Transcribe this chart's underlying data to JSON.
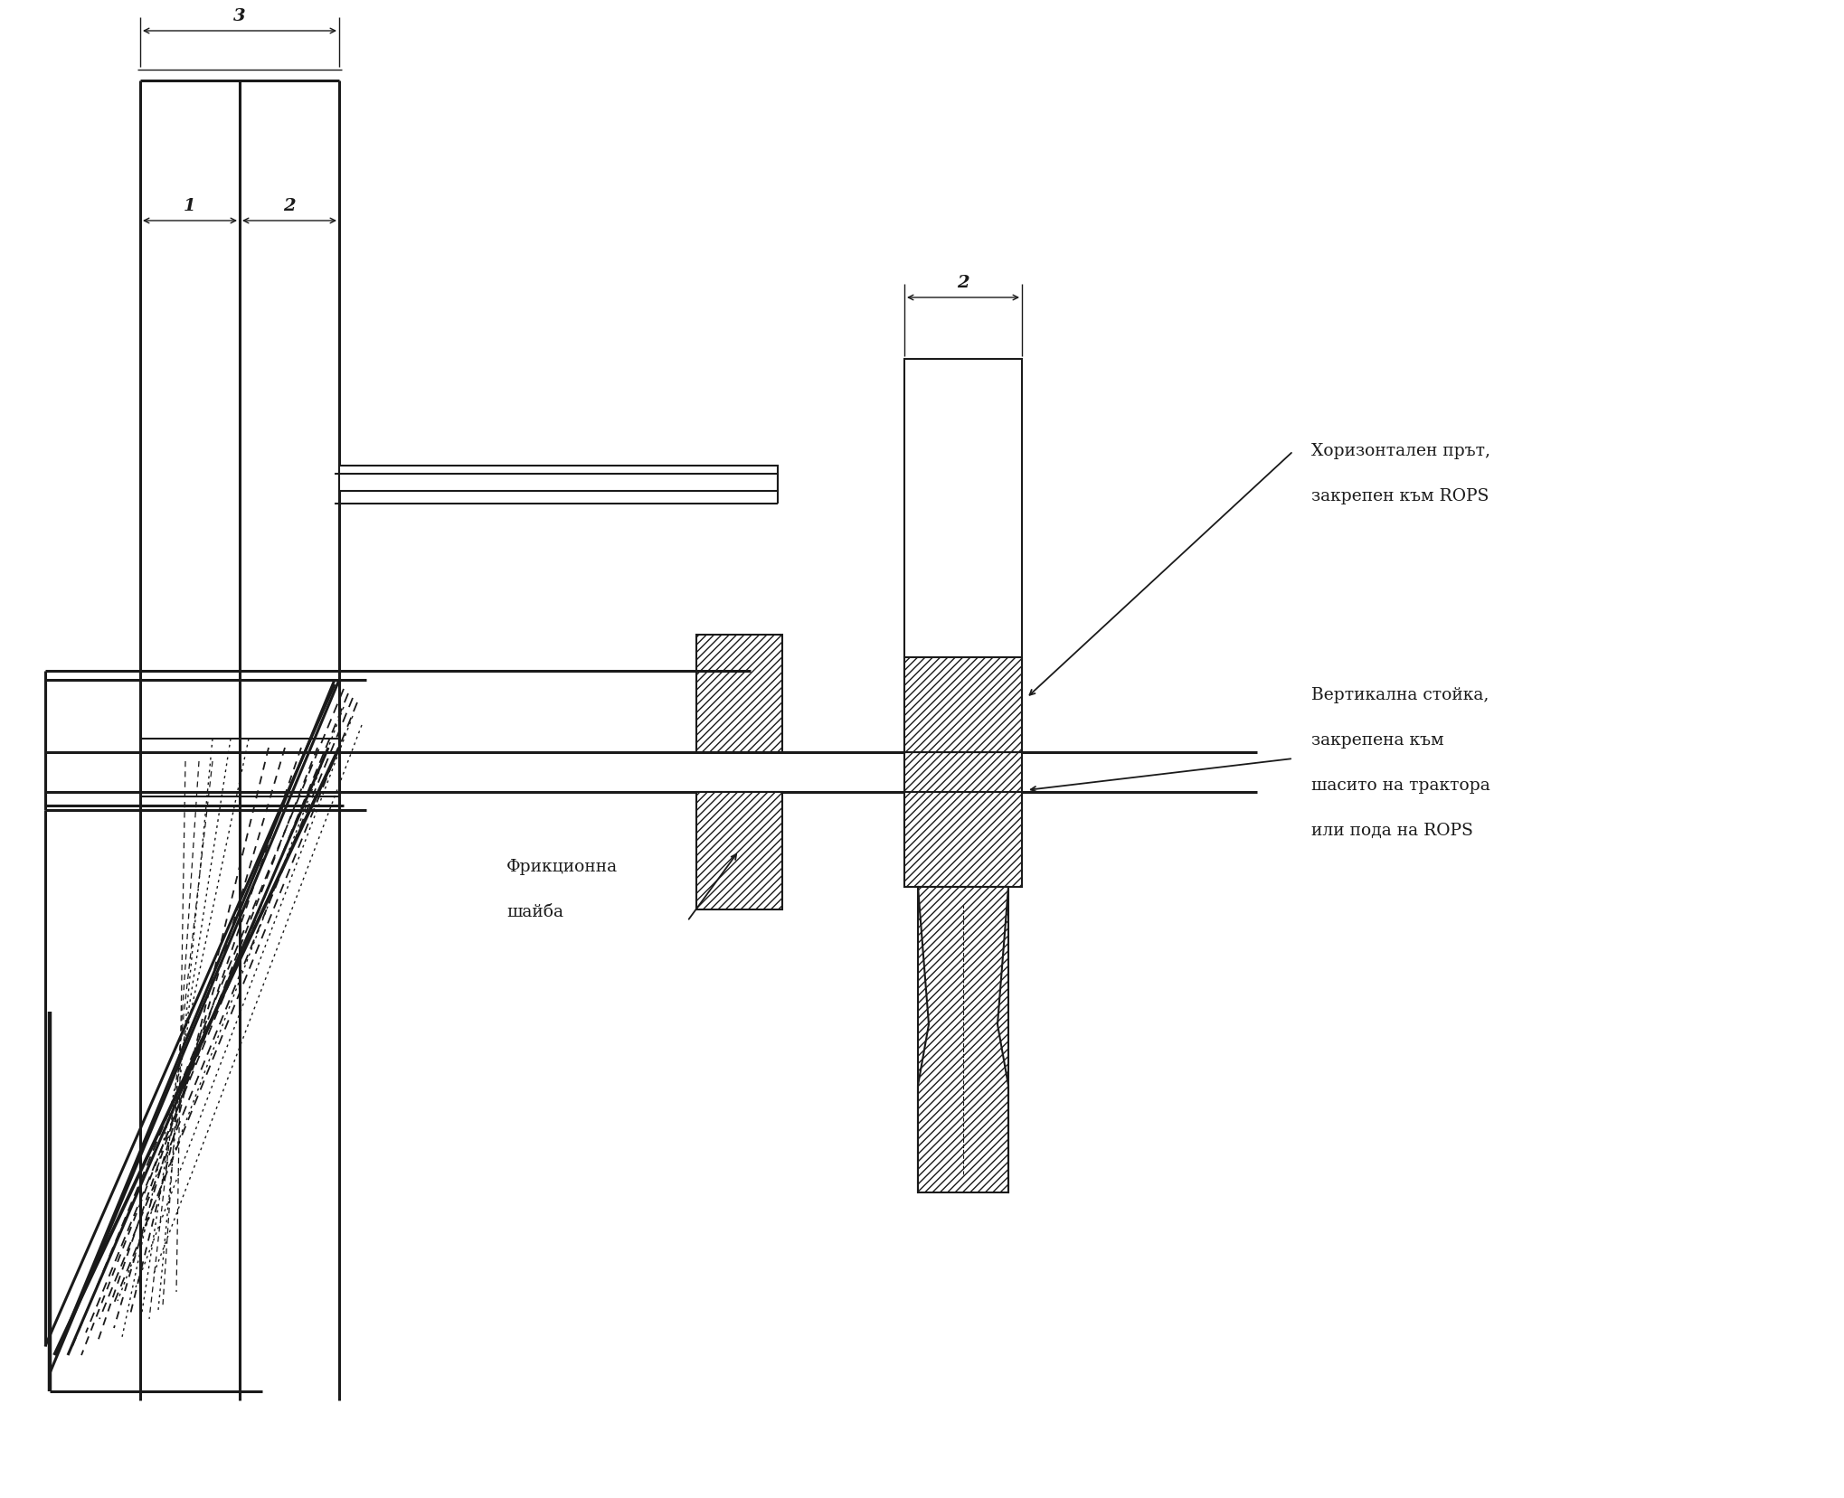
{
  "bg_color": "#ffffff",
  "lc": "#1a1a1a",
  "label1": "Хоризонтален прът,",
  "label1b": "закрепен към ROPS",
  "label2a": "Фрикционна",
  "label2b": "шайба",
  "label3a": "Вертикална стойка,",
  "label3b": "закрепена към",
  "label3c": "шасито на трактора",
  "label3d": "или пода на ROPS",
  "fs": 13.5
}
